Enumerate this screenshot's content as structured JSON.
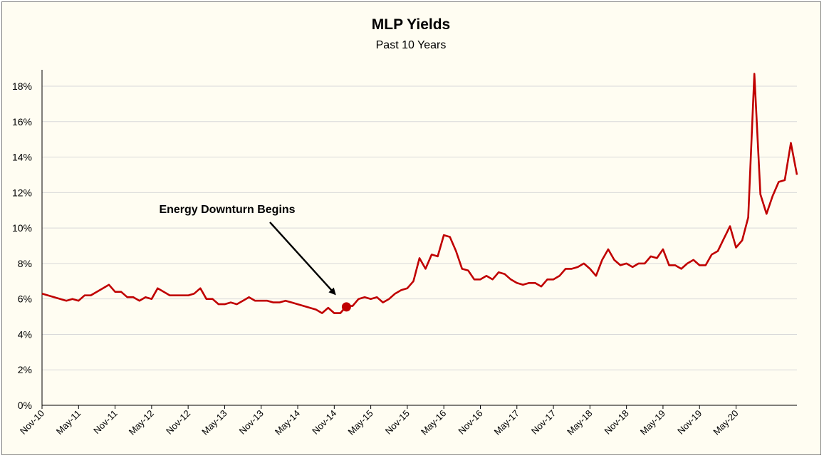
{
  "chart_data": {
    "type": "line",
    "title": "MLP Yields",
    "subtitle": "Past 10 Years",
    "xlabel": "",
    "ylabel": "",
    "ylim": [
      0,
      18
    ],
    "y_ticks": [
      "0%",
      "2%",
      "4%",
      "6%",
      "8%",
      "10%",
      "12%",
      "14%",
      "16%",
      "18%"
    ],
    "y_tick_values": [
      0,
      2,
      4,
      6,
      8,
      10,
      12,
      14,
      16,
      18
    ],
    "x_ticks": [
      "Nov-10",
      "May-11",
      "Nov-11",
      "May-12",
      "Nov-12",
      "May-13",
      "Nov-13",
      "May-14",
      "Nov-14",
      "May-15",
      "Nov-15",
      "May-16",
      "Nov-16",
      "May-17",
      "Nov-17",
      "May-18",
      "Nov-18",
      "May-19",
      "Nov-19",
      "May-20"
    ],
    "x_tick_index": [
      0,
      6,
      12,
      18,
      24,
      30,
      36,
      42,
      48,
      54,
      60,
      66,
      72,
      78,
      84,
      90,
      96,
      102,
      108,
      114
    ],
    "grid": "horizontal",
    "legend": "none",
    "series": [
      {
        "name": "MLP Yield",
        "color": "#c00000",
        "values": [
          6.3,
          6.2,
          6.1,
          6.0,
          5.9,
          6.0,
          5.9,
          6.2,
          6.2,
          6.4,
          6.6,
          6.8,
          6.4,
          6.4,
          6.1,
          6.1,
          5.9,
          6.1,
          6.0,
          6.6,
          6.4,
          6.2,
          6.2,
          6.2,
          6.2,
          6.3,
          6.6,
          6.0,
          6.0,
          5.7,
          5.7,
          5.8,
          5.7,
          5.9,
          6.1,
          5.9,
          5.9,
          5.9,
          5.8,
          5.8,
          5.9,
          5.8,
          5.7,
          5.6,
          5.5,
          5.4,
          5.2,
          5.5,
          5.2,
          5.2,
          5.6,
          5.6,
          6.0,
          6.1,
          6.0,
          6.1,
          5.8,
          6.0,
          6.3,
          6.5,
          6.6,
          7.0,
          8.3,
          7.7,
          8.5,
          8.4,
          9.6,
          9.5,
          8.7,
          7.7,
          7.6,
          7.1,
          7.1,
          7.3,
          7.1,
          7.5,
          7.4,
          7.1,
          6.9,
          6.8,
          6.9,
          6.9,
          6.7,
          7.1,
          7.1,
          7.3,
          7.7,
          7.7,
          7.8,
          8.0,
          7.7,
          7.3,
          8.2,
          8.8,
          8.2,
          7.9,
          8.0,
          7.8,
          8.0,
          8.0,
          8.4,
          8.3,
          8.8,
          7.9,
          7.9,
          7.7,
          8.0,
          8.2,
          7.9,
          7.9,
          8.5,
          8.7,
          9.4,
          10.1,
          8.9,
          9.3,
          10.6,
          18.7,
          11.9,
          10.8,
          11.8,
          12.6,
          12.7,
          14.8,
          13.0
        ]
      }
    ],
    "annotations": [
      {
        "text": "Energy Downturn Begins",
        "point_index": 50,
        "value": 5.55
      }
    ]
  }
}
